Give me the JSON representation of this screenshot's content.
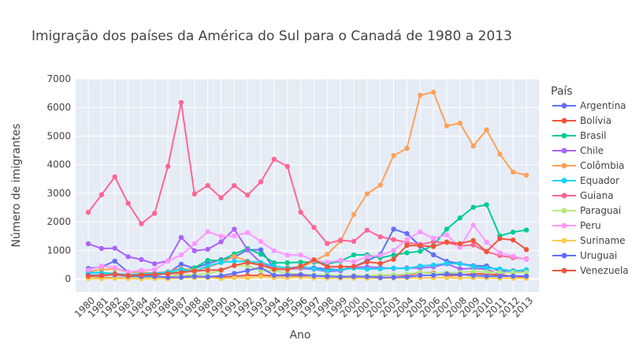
{
  "chart_data": {
    "type": "line",
    "title": "Imigração dos países da América do Sul para o Canadá de 1980 a 2013",
    "xlabel": "Ano",
    "ylabel": "Número de imigrantes",
    "ylim": [
      -450,
      7000
    ],
    "yticks": [
      0,
      1000,
      2000,
      3000,
      4000,
      5000,
      6000,
      7000
    ],
    "grid": true,
    "legend_title": "País",
    "legend_position": "right",
    "x": [
      1980,
      1981,
      1982,
      1983,
      1984,
      1985,
      1986,
      1987,
      1988,
      1989,
      1990,
      1991,
      1992,
      1993,
      1994,
      1995,
      1996,
      1997,
      1998,
      1999,
      2000,
      2001,
      2002,
      2003,
      2004,
      2005,
      2006,
      2007,
      2008,
      2009,
      2010,
      2011,
      2012,
      2013
    ],
    "series": [
      {
        "name": "Argentina",
        "color": "#636efa",
        "values": [
          368,
          426,
          626,
          241,
          237,
          196,
          213,
          519,
          374,
          538,
          678,
          763,
          1023,
          1022,
          366,
          380,
          396,
          391,
          349,
          318,
          427,
          635,
          865,
          1745,
          1591,
          1153,
          847,
          620,
          540,
          467,
          459,
          278,
          263,
          282
        ]
      },
      {
        "name": "Bolívia",
        "color": "#EF553B",
        "values": [
          44,
          52,
          42,
          49,
          38,
          44,
          79,
          165,
          63,
          68,
          69,
          103,
          122,
          131,
          114,
          120,
          109,
          130,
          109,
          81,
          115,
          95,
          122,
          142,
          127,
          225,
          214,
          114,
          136,
          183,
          175,
          142,
          95,
          62
        ]
      },
      {
        "name": "Brasil",
        "color": "#00cc96",
        "values": [
          211,
          220,
          192,
          139,
          145,
          130,
          205,
          244,
          394,
          650,
          650,
          877,
          1066,
          866,
          566,
          572,
          586,
          591,
          531,
          626,
          845,
          847,
          745,
          839,
          917,
          969,
          1181,
          1746,
          2138,
          2509,
          2598,
          1508,
          1642,
          1714
        ]
      },
      {
        "name": "Chile",
        "color": "#ab63fa",
        "values": [
          1233,
          1069,
          1078,
          781,
          681,
          533,
          633,
          1454,
          990,
          1039,
          1301,
          1744,
          1017,
          571,
          375,
          346,
          369,
          343,
          260,
          293,
          414,
          423,
          400,
          366,
          388,
          384,
          427,
          530,
          350,
          375,
          340,
          174,
          291,
          273
        ]
      },
      {
        "name": "Colômbia",
        "color": "#FFA15A",
        "values": [
          266,
          326,
          360,
          244,
          235,
          214,
          257,
          376,
          299,
          404,
          573,
          789,
          628,
          483,
          369,
          408,
          393,
          634,
          867,
          1325,
          2257,
          2979,
          3285,
          4317,
          4570,
          6424,
          6535,
          5357,
          5452,
          4652,
          5218,
          4366,
          3741,
          3631
        ]
      },
      {
        "name": "Equador",
        "color": "#19d3f3",
        "values": [
          238,
          207,
          184,
          155,
          179,
          208,
          240,
          344,
          265,
          455,
          579,
          616,
          615,
          579,
          446,
          383,
          429,
          360,
          289,
          334,
          379,
          346,
          356,
          383,
          366,
          457,
          491,
          547,
          534,
          440,
          387,
          355,
          272,
          326
        ]
      },
      {
        "name": "Guiana",
        "color": "#FF6692",
        "values": [
          2334,
          2943,
          3575,
          2650,
          1932,
          2299,
          3942,
          6174,
          2977,
          3270,
          2841,
          3270,
          2934,
          3402,
          4191,
          3939,
          2336,
          1804,
          1242,
          1357,
          1317,
          1712,
          1477,
          1381,
          1275,
          1210,
          1301,
          1276,
          1160,
          1191,
          954,
          821,
          745,
          705
        ]
      },
      {
        "name": "Paraguai",
        "color": "#B6E880",
        "values": [
          45,
          26,
          32,
          40,
          48,
          40,
          85,
          145,
          143,
          178,
          301,
          473,
          468,
          286,
          294,
          201,
          162,
          142,
          135,
          108,
          104,
          113,
          136,
          148,
          166,
          239,
          190,
          211,
          228,
          271,
          242,
          232,
          227,
          234
        ]
      },
      {
        "name": "Peru",
        "color": "#FF97FF",
        "values": [
          317,
          456,
          401,
          241,
          306,
          328,
          628,
          843,
          1237,
          1653,
          1496,
          1507,
          1628,
          1313,
          991,
          838,
          843,
          643,
          582,
          654,
          602,
          785,
          827,
          1002,
          1384,
          1647,
          1424,
          1544,
          1107,
          1887,
          1291,
          916,
          800,
          679
        ]
      },
      {
        "name": "Suriname",
        "color": "#FECB52",
        "values": [
          15,
          10,
          21,
          12,
          5,
          16,
          7,
          40,
          42,
          47,
          16,
          40,
          37,
          80,
          36,
          42,
          64,
          32,
          27,
          28,
          28,
          25,
          30,
          32,
          37,
          41,
          40,
          45,
          36,
          42,
          37,
          25,
          28,
          27
        ]
      },
      {
        "name": "Uruguai",
        "color": "#636efa",
        "values": [
          128,
          132,
          146,
          105,
          90,
          92,
          60,
          65,
          92,
          78,
          112,
          197,
          296,
          404,
          130,
          142,
          152,
          112,
          93,
          73,
          89,
          85,
          50,
          59,
          76,
          127,
          131,
          173,
          157,
          123,
          103,
          95,
          104,
          101
        ]
      },
      {
        "name": "Venezuela",
        "color": "#EF553B",
        "values": [
          103,
          117,
          174,
          124,
          142,
          165,
          179,
          229,
          279,
          308,
          314,
          473,
          577,
          489,
          343,
          334,
          444,
          673,
          428,
          430,
          438,
          601,
          546,
          690,
          1174,
          1167,
          1136,
          1296,
          1238,
          1350,
          961,
          1416,
          1366,
          1031
        ]
      }
    ]
  }
}
